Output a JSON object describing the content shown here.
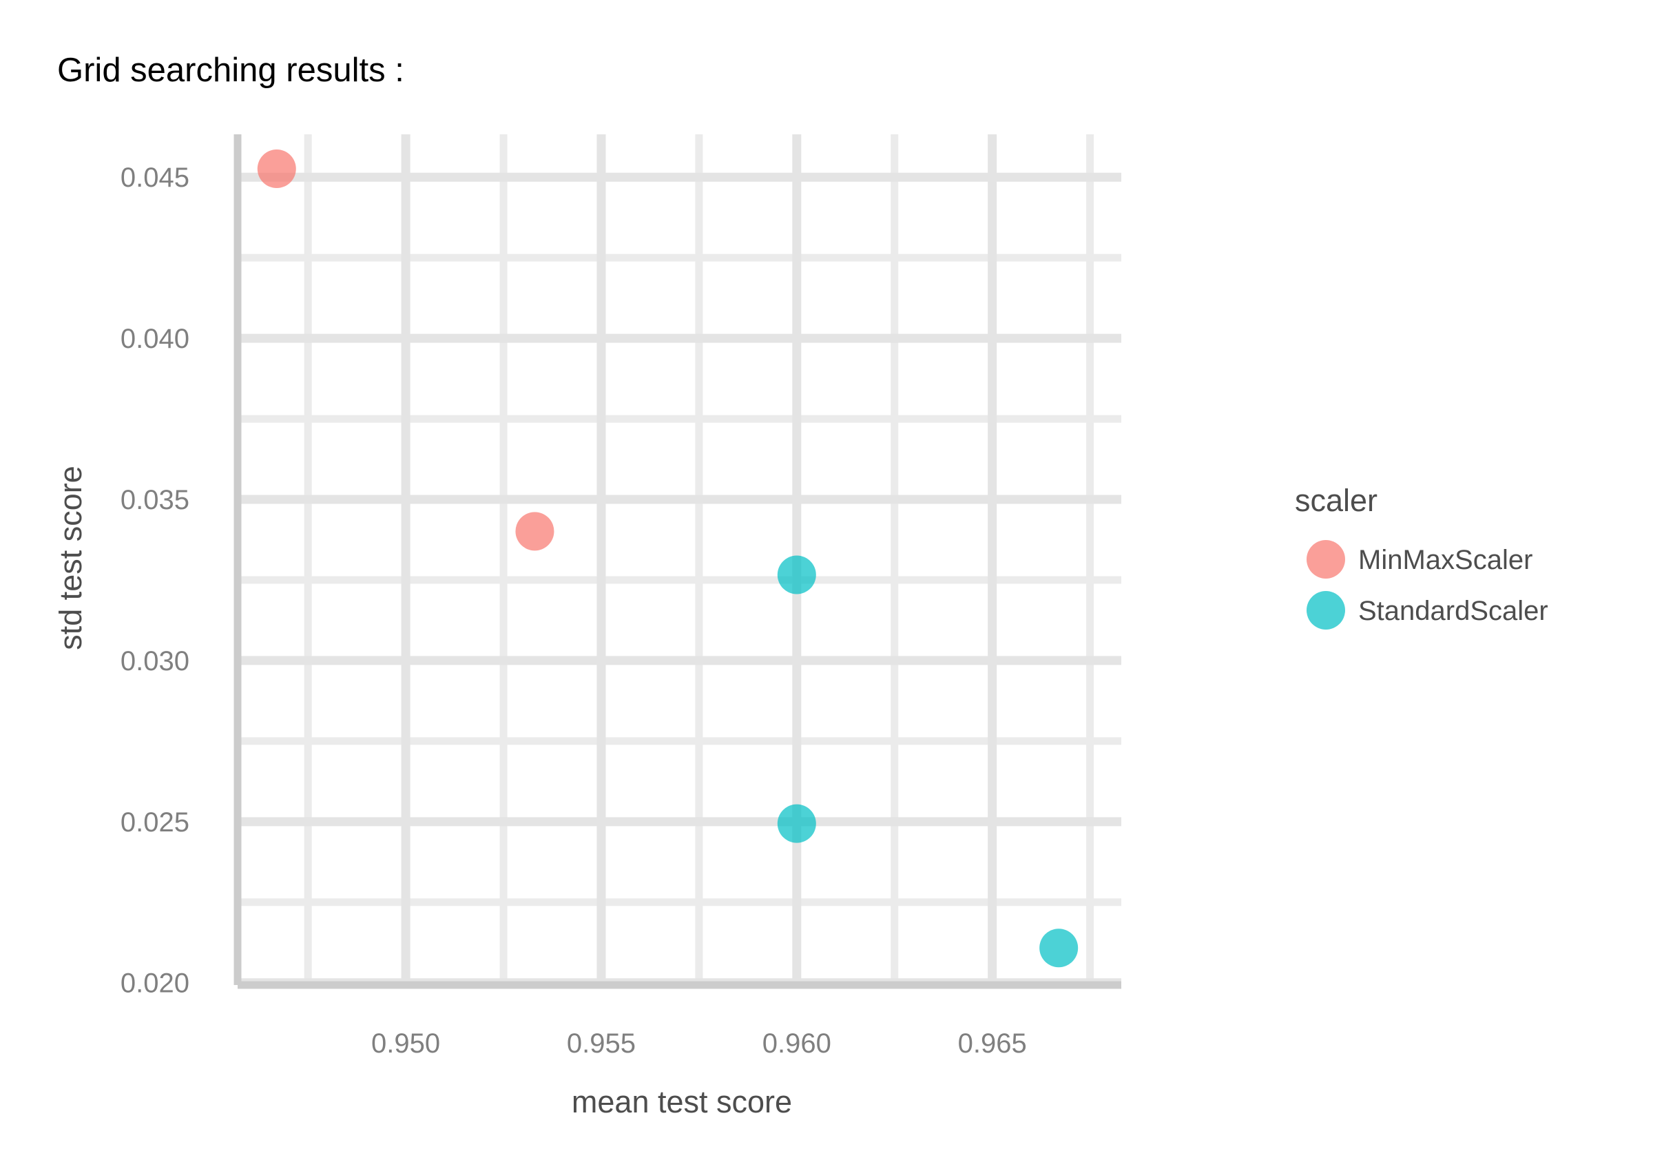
{
  "chart_data": {
    "type": "scatter",
    "title": "Grid searching results :",
    "xlabel": "mean test score",
    "ylabel": "std test score",
    "xlim": [
      0.9457,
      0.9683
    ],
    "ylim": [
      0.01993,
      0.04633
    ],
    "x_major_ticks": [
      0.95,
      0.955,
      0.96,
      0.965
    ],
    "x_minor_ticks": [
      0.9475,
      0.9525,
      0.9575,
      0.9625,
      0.9675
    ],
    "x_tick_labels": [
      "0.950",
      "0.955",
      "0.960",
      "0.965"
    ],
    "y_major_ticks": [
      0.02,
      0.025,
      0.03,
      0.035,
      0.04,
      0.045
    ],
    "y_minor_ticks": [
      0.0225,
      0.0275,
      0.0325,
      0.0375,
      0.0425
    ],
    "y_tick_labels": [
      "0.020",
      "0.025",
      "0.030",
      "0.035",
      "0.040",
      "0.045"
    ],
    "grid": true,
    "legend": {
      "title": "scaler",
      "position": "right",
      "entries": [
        "MinMaxScaler",
        "StandardScaler"
      ]
    },
    "series": [
      {
        "name": "MinMaxScaler",
        "color": "#f8766d",
        "points": [
          {
            "x": 0.9467,
            "y": 0.04526
          },
          {
            "x": 0.9533,
            "y": 0.03401
          }
        ]
      },
      {
        "name": "StandardScaler",
        "color": "#00bfc4",
        "points": [
          {
            "x": 0.96,
            "y": 0.03266
          },
          {
            "x": 0.96,
            "y": 0.02494
          },
          {
            "x": 0.9667,
            "y": 0.02108
          }
        ]
      }
    ]
  }
}
